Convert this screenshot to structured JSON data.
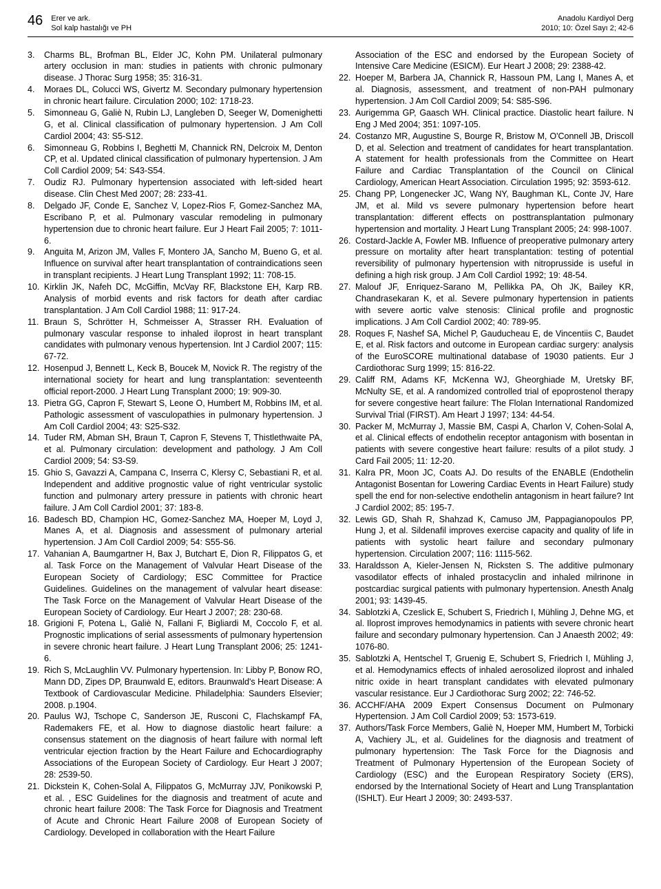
{
  "header": {
    "page_number": "46",
    "authors_line": "Erer ve ark.",
    "title_line": "Sol kalp hastalığı ve PH",
    "journal_line": "Anadolu Kardiyol Derg",
    "issue_line": "2010; 10: Özel Sayı 2; 42-6"
  },
  "refs_left": [
    {
      "n": "3.",
      "t": "Charms BL, Brofman BL, Elder JC, Kohn PM. Unilateral pulmonary artery occlusion in man: studies in patients with chronic pulmonary disease. J Thorac Surg 1958; 35: 316-31."
    },
    {
      "n": "4.",
      "t": "Moraes DL, Colucci WS, Givertz M. Secondary pulmonary hypertension in chronic heart failure. Circulation 2000; 102: 1718-23."
    },
    {
      "n": "5.",
      "t": "Simonneau G, Galiè N, Rubin LJ, Langleben D, Seeger W, Domenighetti G, et al. Clinical classification of pulmonary hypertension. J Am Coll Cardiol 2004; 43: S5-S12."
    },
    {
      "n": "6.",
      "t": "Simonneau G, Robbins I, Beghetti M, Channick RN, Delcroix M, Denton CP, et al. Updated clinical classification of pulmonary hypertension. J Am Coll Cardiol 2009; 54: S43-S54."
    },
    {
      "n": "7.",
      "t": "Oudiz RJ. Pulmonary hypertension associated with left-sided heart disease. Clin Chest Med 2007; 28: 233-41."
    },
    {
      "n": "8.",
      "t": "Delgado JF, Conde E, Sanchez V, Lopez-Rios F, Gomez-Sanchez MA, Escribano P, et al. Pulmonary vascular remodeling in pulmonary hypertension due to chronic heart failure. Eur J Heart Fail 2005; 7: 1011-6."
    },
    {
      "n": "9.",
      "t": "Anguita M, Arizon JM, Valles F, Montero JA, Sancho M, Bueno G, et al. Influence on survival after heart transplantation of contraindications seen in transplant recipients. J Heart Lung Transplant 1992; 11: 708-15."
    },
    {
      "n": "10.",
      "t": "Kirklin JK, Nafeh DC, McGiffin, McVay RF, Blackstone EH, Karp RB. Analysis of morbid events and risk factors for death after cardiac transplantation. J Am Coll Cardiol 1988; 11: 917-24."
    },
    {
      "n": "11.",
      "t": "Braun S, Schrötter H, Schmeisser A, Strasser RH. Evaluation of pulmonary vascular response to inhaled iloprost in heart transplant candidates with pulmonary venous hypertension. Int J Cardiol 2007; 115: 67-72."
    },
    {
      "n": "12.",
      "t": "Hosenpud J, Bennett L, Keck B, Boucek M, Novick R. The registry of the international society for heart and lung transplantation: seventeenth official report-2000. J Heart Lung Transplant 2000; 19: 909-30."
    },
    {
      "n": "13.",
      "t": "Pietra GG, Capron F, Stewart S, Leone O, Humbert M, Robbins IM, et al. Pathologic assessment of vasculopathies in pulmonary hypertension. J Am Coll Cardiol 2004; 43: S25-S32."
    },
    {
      "n": "14.",
      "t": "Tuder RM, Abman SH, Braun T, Capron F, Stevens T, Thistlethwaite PA, et al. Pulmonary circulation: development and pathology. J Am Coll Cardiol 2009; 54: S3-S9."
    },
    {
      "n": "15.",
      "t": "Ghio S, Gavazzi A, Campana C, Inserra C, Klersy C, Sebastiani R, et al. Independent and additive prognostic value of right ventricular systolic function and pulmonary artery pressure in patients with chronic heart failure. J Am Coll Cardiol 2001; 37: 183-8."
    },
    {
      "n": "16.",
      "t": "Badesch BD, Champion HC, Gomez-Sanchez MA, Hoeper M, Loyd J, Manes A, et al. Diagnosis and assessment of pulmonary arterial hypertension. J Am Coll Cardiol 2009; 54: S55-S6."
    },
    {
      "n": "17.",
      "t": "Vahanian A, Baumgartner H, Bax J, Butchart E, Dion R, Filippatos G, et al. Task Force on the Management of Valvular Heart Disease of the European Society of Cardiology; ESC Committee for Practice Guidelines. Guidelines on the management of valvular heart disease: The Task Force on the Management of Valvular Heart Disease of the European Society of Cardiology. Eur Heart J 2007; 28: 230-68."
    },
    {
      "n": "18.",
      "t": "Grigioni F, Potena L, Galiè N, Fallani F, Bigliardi M, Coccolo F, et al. Prognostic implications of serial assessments of pulmonary hypertension in severe chronic heart failure. J Heart Lung Transplant 2006; 25: 1241-6."
    },
    {
      "n": "19.",
      "t": "Rich S, McLaughlin VV. Pulmonary hypertension. In: Libby P, Bonow RO, Mann DD, Zipes DP, Braunwald E, editors. Braunwald's Heart Disease: A Textbook of Cardiovascular Medicine. Philadelphia: Saunders Elsevier; 2008. p.1904."
    },
    {
      "n": "20.",
      "t": "Paulus WJ, Tschope C, Sanderson JE, Rusconi C, Flachskampf FA, Rademakers FE, et al. How to diagnose diastolic heart failure: a consensus statement on the diagnosis of heart failure with normal left ventricular ejection fraction by the Heart Failure and Echocardiography Associations of the European Society of Cardiology. Eur Heart J 2007; 28: 2539-50."
    },
    {
      "n": "21.",
      "t": "Dickstein K, Cohen-Solal A, Filippatos G, McMurray JJV, Ponikowski P, et al. , ESC Guidelines for the diagnosis and treatment of acute and chronic heart failure 2008: The Task Force for Diagnosis and Treatment of Acute and Chronic Heart Failure 2008 of European Society of Cardiology. Developed in collaboration with the Heart Failure"
    }
  ],
  "right_continuation": "Association of the ESC and endorsed by the European Society of Intensive Care Medicine (ESICM). Eur Heart J 2008; 29: 2388-42.",
  "refs_right": [
    {
      "n": "22.",
      "t": "Hoeper M, Barbera JA, Channick R, Hassoun PM, Lang I, Manes A, et al. Diagnosis, assessment, and treatment of non-PAH pulmonary hypertension. J Am Coll Cardiol 2009; 54: S85-S96."
    },
    {
      "n": "23.",
      "t": "Aurigemma GP, Gaasch WH. Clinical practice. Diastolic heart failure. N Eng J Med 2004; 351: 1097-105."
    },
    {
      "n": "24.",
      "t": "Costanzo MR, Augustine S, Bourge R, Bristow M, O'Connell JB, Driscoll D, et al. Selection and treatment of candidates for heart transplantation. A statement for health professionals from the Committee on Heart Failure and Cardiac Transplantation of the Council on Clinical Cardiology, American Heart Association. Circulation 1995; 92: 3593-612."
    },
    {
      "n": "25.",
      "t": "Chang PP, Longenecker JC, Wang NY, Baughman KL, Conte JV, Hare JM, et al. Mild vs severe pulmonary hypertension before heart transplantation: different effects on posttransplantation pulmonary hypertension and mortality. J Heart Lung Transplant 2005; 24: 998-1007."
    },
    {
      "n": "26.",
      "t": "Costard-Jackle A, Fowler MB. Influence of preoperative pulmonary artery pressure on mortality after heart transplantation: testing of potential reversibility of pulmonary hypertension with nitroprusside is useful in defining a high risk group. J Am Coll Cardiol 1992; 19: 48-54."
    },
    {
      "n": "27.",
      "t": "Malouf JF, Enriquez-Sarano M, Pellikka PA, Oh JK, Bailey KR, Chandrasekaran K, et al. Severe pulmonary hypertension in patients with severe aortic valve stenosis: Clinical profile and prognostic implications. J Am Coll Cardiol 2002; 40: 789-95."
    },
    {
      "n": "28.",
      "t": "Roques F, Nashef SA, Michel P, Gauducheau E, de Vincentiis C, Baudet E, et al. Risk factors and outcome in European cardiac surgery: analysis of the EuroSCORE multinational database of 19030 patients. Eur J Cardiothorac Surg 1999; 15: 816-22."
    },
    {
      "n": "29.",
      "t": "Califf RM, Adams KF, McKenna WJ, Gheorghiade M, Uretsky BF, McNulty SE, et al. A randomized controlled trial of epoprostenol therapy for severe congestive heart failure: The Flolan International Randomized Survival Trial (FIRST). Am Heart J 1997; 134: 44-54."
    },
    {
      "n": "30.",
      "t": "Packer M, McMurray J, Massie BM, Caspi A, Charlon V, Cohen-Solal A, et al. Clinical effects of endothelin receptor antagonism with bosentan in patients with severe congestive heart failure: results of a pilot study. J Card Fail 2005; 11: 12-20."
    },
    {
      "n": "31.",
      "t": "Kalra PR, Moon JC, Coats AJ. Do results of the ENABLE (Endothelin Antagonist Bosentan for Lowering Cardiac Events in Heart Failure) study spell the end for non-selective endothelin antagonism in heart failure? Int J Cardiol 2002; 85: 195-7."
    },
    {
      "n": "32.",
      "t": "Lewis GD, Shah R, Shahzad K, Camuso JM, Pappagianopoulos PP, Hung J, et al. Sildenafil improves exercise capacity and quality of life in patients with systolic heart failure and secondary pulmonary hypertension. Circulation 2007; 116: 1115-562."
    },
    {
      "n": "33.",
      "t": "Haraldsson A, Kieler-Jensen N, Ricksten S. The additive pulmonary vasodilator effects of inhaled prostacyclin and inhaled milrinone in postcardiac surgical patients with pulmonary hypertension. Anesth Analg 2001; 93: 1439-45."
    },
    {
      "n": "34.",
      "t": "Sablotzki A, Czeslick E, Schubert S, Friedrich I, Mühling J, Dehne MG, et al. Iloprost improves hemodynamics in patients with severe chronic heart failure and secondary pulmonary hypertension. Can J Anaesth 2002; 49: 1076-80."
    },
    {
      "n": "35.",
      "t": "Sablotzki A, Hentschel T, Gruenig E, Schubert S, Friedrich I, Mühling J, et al. Hemodynamics effects of inhaled aerosolized iloprost and inhaled nitric oxide in heart transplant candidates with elevated pulmonary vascular resistance. Eur J Cardiothorac Surg 2002; 22: 746-52."
    },
    {
      "n": "36.",
      "t": "ACCHF/AHA 2009 Expert Consensus Document on Pulmonary Hypertension. J Am Coll Cardiol 2009; 53: 1573-619."
    },
    {
      "n": "37.",
      "t": "Authors/Task Force Members, Galiè N, Hoeper MM, Humbert M, Torbicki A, Vachiery JL, et al. Guidelines for the diagnosis and treatment of pulmonary hypertension: The Task Force for the Diagnosis and Treatment of Pulmonary Hypertension of the European Society of Cardiology (ESC) and the European Respiratory Society (ERS), endorsed by the International Society of Heart and Lung Transplantation (ISHLT). Eur Heart J 2009; 30: 2493-537."
    }
  ]
}
